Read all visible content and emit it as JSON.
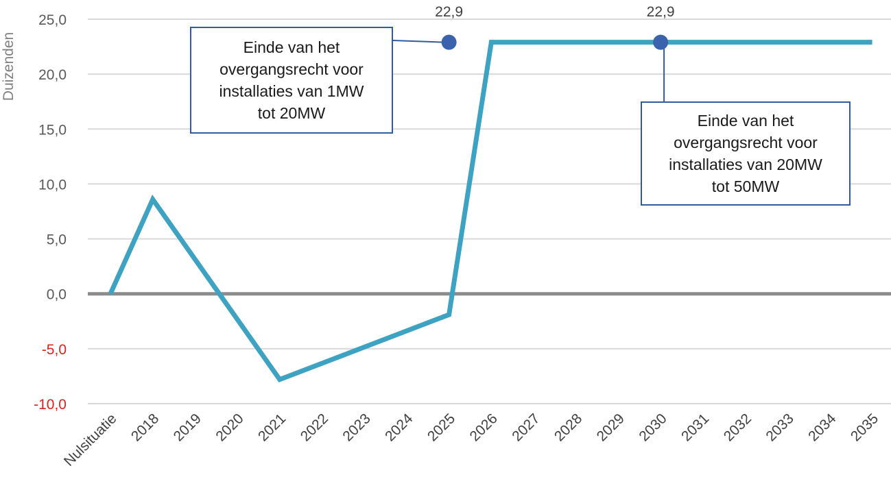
{
  "chart_data": {
    "type": "line",
    "ylabel": "Duizenden",
    "xlabel": "",
    "ylim": [
      -10,
      25
    ],
    "yticks": [
      "-10,0",
      "-5,0",
      "0,0",
      "5,0",
      "10,0",
      "15,0",
      "20,0",
      "25,0"
    ],
    "yticks_values": [
      -10,
      -5,
      0,
      5,
      10,
      15,
      20,
      25
    ],
    "negative_tick_color": "#e0201b",
    "line_color": "#3ea3c3",
    "marker_color": "#3a62ad",
    "zero_line_color": "#8c8c8c",
    "grid": true,
    "categories": [
      "Nulsituatie",
      "2018",
      "2019",
      "2020",
      "2021",
      "2022",
      "2023",
      "2024",
      "2025",
      "2026",
      "2027",
      "2028",
      "2029",
      "2030",
      "2031",
      "2032",
      "2033",
      "2034",
      "2035"
    ],
    "x": [
      0,
      1,
      4,
      8,
      9,
      13,
      18
    ],
    "values": [
      0,
      8.6,
      -7.8,
      -1.9,
      22.9,
      22.9,
      22.9
    ],
    "highlighted_points": [
      {
        "category": "2025",
        "value": 22.9,
        "label": "22,9"
      },
      {
        "category": "2030",
        "value": 22.9,
        "label": "22,9"
      }
    ],
    "annotations": [
      {
        "lines": [
          "Einde van het",
          "overgangsrecht voor",
          "installaties van 1MW",
          "tot 20MW"
        ],
        "target_category": "2025"
      },
      {
        "lines": [
          "Einde van het",
          "overgangsrecht voor",
          "installaties van 20MW",
          "tot 50MW"
        ],
        "target_category": "2030"
      }
    ]
  }
}
